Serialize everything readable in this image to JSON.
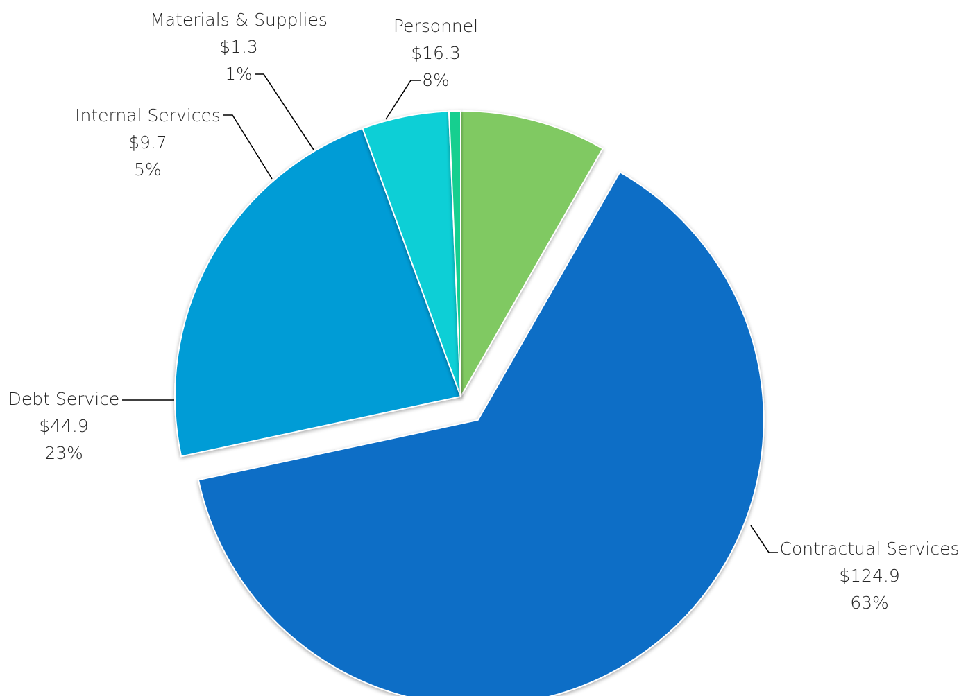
{
  "chart_data": {
    "type": "pie",
    "title": "",
    "exploded_slice": "Contractual Services",
    "slices": [
      {
        "name": "Personnel",
        "value": 16.3,
        "value_label": "$16.3",
        "percent_label": "8%",
        "color": "#80C962"
      },
      {
        "name": "Contractual Services",
        "value": 124.9,
        "value_label": "$124.9",
        "percent_label": "63%",
        "color": "#106EC6"
      },
      {
        "name": "Debt Service",
        "value": 44.9,
        "value_label": "$44.9",
        "percent_label": "23%",
        "color": "#009CD6"
      },
      {
        "name": "Internal Services",
        "value": 9.7,
        "value_label": "$9.7",
        "percent_label": "5%",
        "color": "#0BCFD6"
      },
      {
        "name": "Materials & Supplies",
        "value": 1.3,
        "value_label": "$1.3",
        "percent_label": "1%",
        "color": "#16CF8F"
      }
    ]
  }
}
